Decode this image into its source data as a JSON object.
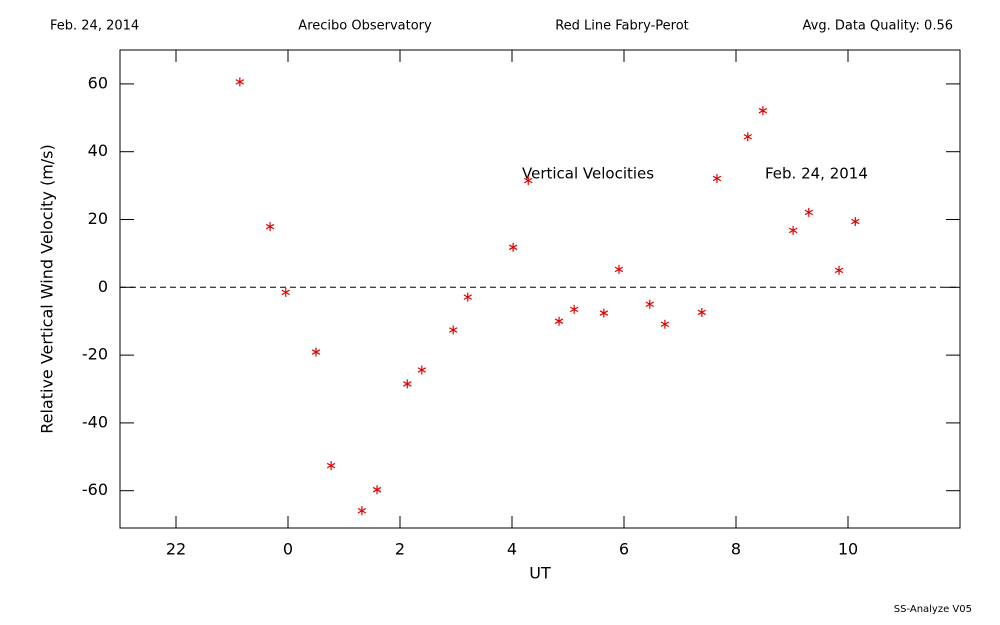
{
  "header": {
    "date": "Feb. 24, 2014",
    "site": "Arecibo Observatory",
    "instrument": "Red Line Fabry-Perot",
    "quality": "Avg. Data Quality: 0.56"
  },
  "footer": "SS-Analyze V05",
  "chart_data": {
    "type": "scatter",
    "xlabel": "UT",
    "ylabel": "Relative Vertical Wind Velocity (m/s)",
    "annotations": [
      "Vertical Velocities",
      "Feb. 24, 2014"
    ],
    "reference_line": 0,
    "xlim": [
      -3,
      12
    ],
    "xticks": [
      {
        "value": -2,
        "label": "22"
      },
      0,
      2,
      4,
      6,
      8,
      10
    ],
    "ylim": [
      -71,
      70
    ],
    "yticks": [
      -60,
      -40,
      -20,
      0,
      20,
      40,
      60
    ],
    "series": [
      {
        "color": "#e00000",
        "x": [
          -0.86,
          -0.32,
          -0.04,
          0.5,
          0.77,
          1.32,
          1.59,
          2.13,
          2.39,
          2.95,
          3.21,
          4.02,
          4.29,
          4.84,
          5.11,
          5.64,
          5.91,
          6.46,
          6.73,
          7.39,
          7.66,
          8.21,
          8.48,
          9.02,
          9.3,
          9.84,
          10.13
        ],
        "values": [
          60.6,
          17.9,
          -1.5,
          -19.1,
          -52.6,
          -65.9,
          -59.7,
          -28.5,
          -24.4,
          -12.6,
          -2.9,
          11.8,
          31.5,
          -10,
          -6.5,
          -7.6,
          5.3,
          -5,
          -10.9,
          -7.4,
          32.1,
          44.4,
          52.1,
          16.8,
          22.1,
          5,
          19.4
        ]
      }
    ]
  }
}
